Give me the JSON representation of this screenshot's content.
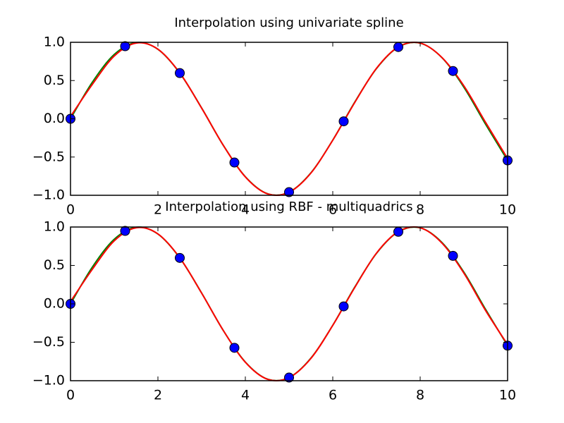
{
  "chart_data": [
    {
      "type": "line",
      "title": "Interpolation using univariate spline",
      "x": [
        0,
        0.5,
        1,
        1.5,
        2,
        2.5,
        3,
        3.5,
        4,
        4.5,
        5,
        5.5,
        6,
        6.5,
        7,
        7.5,
        8,
        8.5,
        9,
        9.5,
        10
      ],
      "series": [
        {
          "color": "#008000",
          "values": [
            0,
            0.479,
            0.841,
            0.997,
            0.909,
            0.598,
            0.141,
            -0.351,
            -0.757,
            -0.978,
            -0.959,
            -0.706,
            -0.279,
            0.215,
            0.657,
            0.938,
            0.989,
            0.798,
            0.412,
            -0.075,
            -0.544
          ]
        },
        {
          "color": "#ff0000",
          "values": [
            0.03,
            0.45,
            0.82,
            0.99,
            0.91,
            0.6,
            0.14,
            -0.35,
            -0.76,
            -0.98,
            -0.96,
            -0.71,
            -0.28,
            0.21,
            0.66,
            0.94,
            0.99,
            0.8,
            0.43,
            -0.05,
            -0.52
          ]
        }
      ],
      "points": {
        "color": "#0000ff",
        "x": [
          0,
          1.25,
          2.5,
          3.75,
          5,
          6.25,
          7.5,
          8.75,
          10
        ],
        "values": [
          0,
          0.949,
          0.598,
          -0.572,
          -0.959,
          -0.033,
          0.938,
          0.625,
          -0.544
        ]
      },
      "xlim": [
        0,
        10
      ],
      "xticks": [
        0,
        2,
        4,
        6,
        8,
        10
      ],
      "ylim": [
        -1,
        1
      ],
      "yticks": [
        {
          "value": -1,
          "label": "−1.0"
        },
        {
          "value": -0.5,
          "label": "−0.5"
        },
        {
          "value": 0,
          "label": "0.0"
        },
        {
          "value": 0.5,
          "label": "0.5"
        },
        {
          "value": 1,
          "label": "1.0"
        }
      ]
    },
    {
      "type": "line",
      "title": "Interpolation using RBF - multiquadrics",
      "x": [
        0,
        0.5,
        1,
        1.5,
        2,
        2.5,
        3,
        3.5,
        4,
        4.5,
        5,
        5.5,
        6,
        6.5,
        7,
        7.5,
        8,
        8.5,
        9,
        9.5,
        10
      ],
      "series": [
        {
          "color": "#008000",
          "values": [
            0,
            0.479,
            0.841,
            0.997,
            0.909,
            0.598,
            0.141,
            -0.351,
            -0.757,
            -0.978,
            -0.959,
            -0.706,
            -0.279,
            0.215,
            0.657,
            0.938,
            0.989,
            0.798,
            0.412,
            -0.075,
            -0.544
          ]
        },
        {
          "color": "#ff0000",
          "values": [
            0.03,
            0.45,
            0.82,
            0.99,
            0.91,
            0.6,
            0.14,
            -0.35,
            -0.76,
            -0.98,
            -0.96,
            -0.71,
            -0.28,
            0.21,
            0.66,
            0.94,
            0.99,
            0.79,
            0.4,
            -0.09,
            -0.53
          ]
        }
      ],
      "points": {
        "color": "#0000ff",
        "x": [
          0,
          1.25,
          2.5,
          3.75,
          5,
          6.25,
          7.5,
          8.75,
          10
        ],
        "values": [
          0,
          0.949,
          0.598,
          -0.572,
          -0.959,
          -0.033,
          0.938,
          0.625,
          -0.544
        ]
      },
      "xlim": [
        0,
        10
      ],
      "xticks": [
        0,
        2,
        4,
        6,
        8,
        10
      ],
      "ylim": [
        -1,
        1
      ],
      "yticks": [
        {
          "value": -1,
          "label": "−1.0"
        },
        {
          "value": -0.5,
          "label": "−0.5"
        },
        {
          "value": 0,
          "label": "0.0"
        },
        {
          "value": 0.5,
          "label": "0.5"
        },
        {
          "value": 1,
          "label": "1.0"
        }
      ]
    }
  ]
}
